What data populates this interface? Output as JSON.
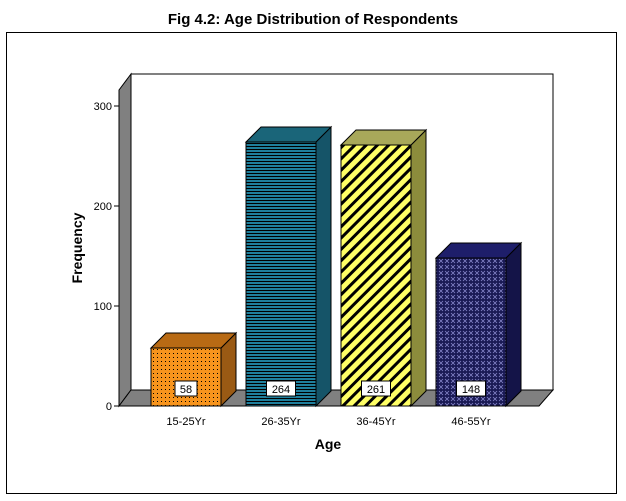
{
  "chart_data": {
    "type": "bar",
    "title": "Fig 4.2: Age Distribution of Respondents",
    "xlabel": "Age",
    "ylabel": "Frequency",
    "categories": [
      "15-25Yr",
      "26-35Yr",
      "36-45Yr",
      "46-55Yr"
    ],
    "values": [
      58,
      264,
      261,
      148
    ],
    "data_labels": [
      "58",
      "264",
      "261",
      "148"
    ],
    "ylim": [
      0,
      300
    ],
    "yticks": [
      0,
      100,
      200,
      300
    ],
    "ytick_labels": [
      "0",
      "100",
      "200",
      "300"
    ],
    "grid": false,
    "bar_style": "3d",
    "colors": {
      "front": [
        "#f7941d",
        "#1f7f9c",
        "#ffff66",
        "#1a1a55"
      ],
      "side": [
        "#9a5a14",
        "#155468",
        "#8c8c3c",
        "#141448"
      ],
      "top": [
        "#b86a14",
        "#1a6579",
        "#a8a85a",
        "#1e1e6a"
      ],
      "pattern": [
        "#000000",
        "#000000",
        "#000000",
        "#ffffff"
      ],
      "wall": "#808080",
      "floor": "#808080"
    }
  }
}
